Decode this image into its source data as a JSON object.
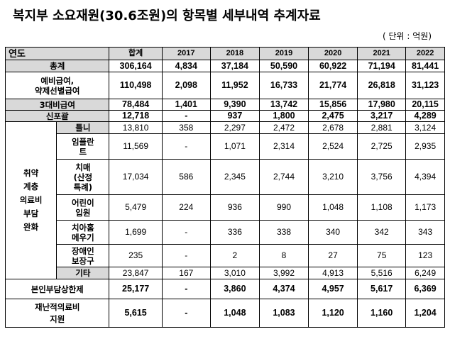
{
  "title": "복지부 소요재원(30.6조원)의 항목별 세부내역 추계자료",
  "unit": "( 단위 : 억원)",
  "header": [
    "연도",
    "합계",
    "2017",
    "2018",
    "2019",
    "2020",
    "2021",
    "2022"
  ],
  "rows": {
    "total": {
      "label": "총계",
      "values": [
        "306,164",
        "4,834",
        "37,184",
        "50,590",
        "60,922",
        "71,194",
        "81,441"
      ]
    },
    "reserve": {
      "label": "예비급여,\n약제선별급여",
      "values": [
        "110,498",
        "2,098",
        "11,952",
        "16,733",
        "21,774",
        "26,818",
        "31,123"
      ]
    },
    "three_uninsured": {
      "label": "3대비급여",
      "values": [
        "78,484",
        "1,401",
        "9,390",
        "13,742",
        "15,856",
        "17,980",
        "20,115"
      ]
    },
    "new_coverage": {
      "label": "신포괄",
      "values": [
        "12,718",
        "-",
        "937",
        "1,800",
        "2,475",
        "3,217",
        "4,289"
      ]
    },
    "vulnerable_category": "취약\n계층\n의료비\n부담\n완화",
    "denture": {
      "label": "틀니",
      "values": [
        "13,810",
        "358",
        "2,297",
        "2,472",
        "2,678",
        "2,881",
        "3,124"
      ]
    },
    "implant": {
      "label": "임플란\n트",
      "values": [
        "11,569",
        "-",
        "1,071",
        "2,314",
        "2,524",
        "2,725",
        "2,935"
      ]
    },
    "dementia": {
      "label": "치매\n(산정\n특례)",
      "values": [
        "17,034",
        "586",
        "2,345",
        "2,744",
        "3,210",
        "3,756",
        "4,394"
      ]
    },
    "children": {
      "label": "어린이\n입원",
      "values": [
        "5,479",
        "224",
        "936",
        "990",
        "1,048",
        "1,108",
        "1,173"
      ]
    },
    "dental_sealant": {
      "label": "치아홈\n메우기",
      "values": [
        "1,699",
        "-",
        "336",
        "338",
        "340",
        "342",
        "343"
      ]
    },
    "disability_aid": {
      "label": "장애인\n보장구",
      "values": [
        "235",
        "-",
        "2",
        "8",
        "27",
        "75",
        "123"
      ]
    },
    "other": {
      "label": "기타",
      "values": [
        "23,847",
        "167",
        "3,010",
        "3,992",
        "4,913",
        "5,516",
        "6,249"
      ]
    },
    "copay_cap": {
      "label": "본인부담상한제",
      "values": [
        "25,177",
        "-",
        "3,860",
        "4,374",
        "4,957",
        "5,617",
        "6,369"
      ]
    },
    "catastrophic": {
      "label": "재난적의료비\n지원",
      "values": [
        "5,615",
        "-",
        "1,048",
        "1,083",
        "1,120",
        "1,160",
        "1,204"
      ]
    }
  }
}
